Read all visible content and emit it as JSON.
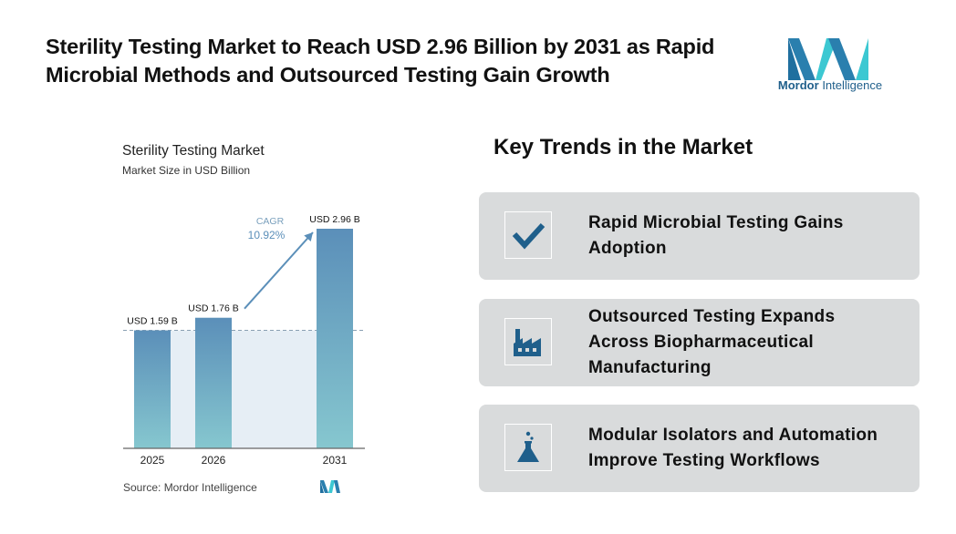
{
  "headline": "Sterility Testing Market to Reach USD 2.96 Billion by 2031 as Rapid Microbial Methods and Outsourced Testing Gain Growth",
  "brand": {
    "name_part1": "Mordor",
    "name_part2": "Intelligence",
    "colors": [
      "#1f6f9f",
      "#39c3cf"
    ]
  },
  "chart": {
    "title": "Sterility Testing Market",
    "subtitle": "Market Size in USD Billion",
    "source": "Source: Mordor Intelligence",
    "cagr_label": "CAGR",
    "cagr_value": "10.92%"
  },
  "chart_data": {
    "type": "bar",
    "categories": [
      "2025",
      "2026",
      "2031"
    ],
    "values": [
      1.59,
      1.76,
      2.96
    ],
    "data_labels": [
      "USD 1.59 B",
      "USD 1.76 B",
      "USD 2.96 B"
    ],
    "ylim": [
      0,
      2.96
    ],
    "grid": false,
    "cagr": "10.92%",
    "bar_colors": [
      "#5b8fb9",
      "#86c7cf"
    ]
  },
  "trends": {
    "title": "Key Trends in the Market",
    "items": [
      {
        "label": "Rapid Microbial Testing Gains Adoption",
        "icon": "checkmark-icon"
      },
      {
        "label": "Outsourced Testing Expands Across Biopharmaceutical Manufacturing",
        "icon": "factory-icon"
      },
      {
        "label": "Modular Isolators and Automation Improve Testing Workflows",
        "icon": "flask-icon"
      }
    ],
    "icon_color": "#1f5f8b"
  }
}
